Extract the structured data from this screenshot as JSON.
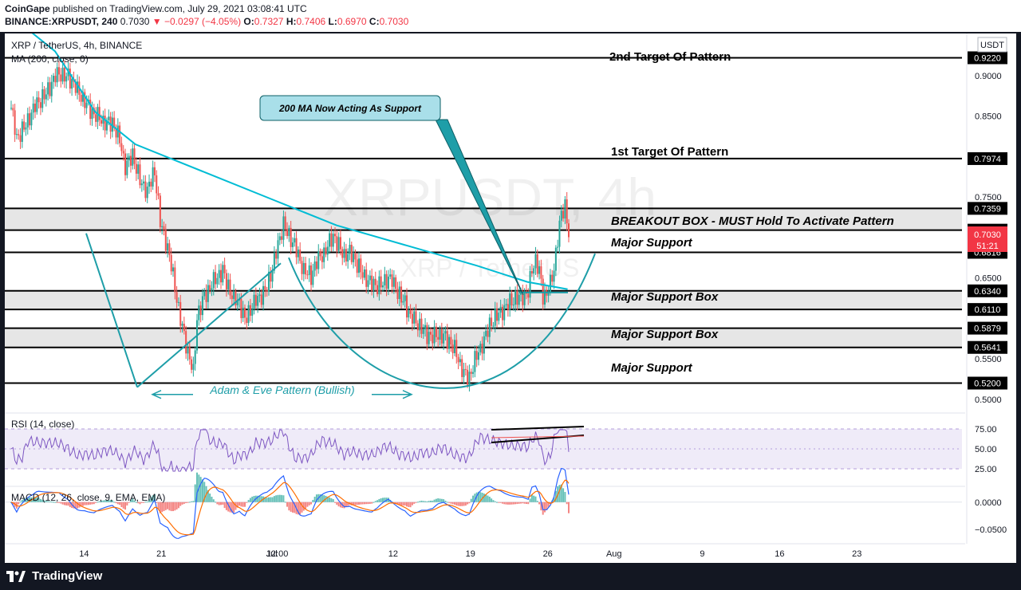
{
  "header": {
    "publisher": "CoinGape",
    "published_text": "published on TradingView.com, July 29, 2021 03:08:41 UTC",
    "symbol": "BINANCE:XRPUSDT, 240",
    "last": "0.7030",
    "change": "−0.0297 (−4.05%)",
    "ohlc": {
      "o_label": "O:",
      "o": "0.7327",
      "h_label": "H:",
      "h": "0.7406",
      "l_label": "L:",
      "l": "0.6970",
      "c_label": "C:",
      "c": "0.7030"
    }
  },
  "chart": {
    "pair_title": "XRP / TetherUS, 4h, BINANCE",
    "ma_legend": "MA (200, close, 0)",
    "currency": "USDT",
    "watermark_big": "XRPUSDT, 4h",
    "watermark_small": "XRP / TetherUS",
    "price_badge": "0.7030",
    "countdown": "51:21",
    "colors": {
      "up": "#26a69a",
      "down": "#ef5350",
      "ma": "#00bcd4",
      "annot": "#1e9ea8",
      "rsi": "#7e57c2",
      "macd": "#2962ff",
      "signal": "#ff6d00",
      "zone": "#e6e6e6"
    }
  },
  "annotations": {
    "second_target": "2nd Target Of Pattern",
    "first_target": "1st Target Of Pattern",
    "breakout_box": "BREAKOUT BOX - MUST Hold To Activate Pattern",
    "major_support_1": "Major Support",
    "major_support_box_1": "Major Support Box",
    "major_support_box_2": "Major Support Box",
    "major_support_2": "Major Support",
    "ma_callout": "200 MA Now Acting As Support",
    "pattern_label": "Adam & Eve Pattern (Bullish)"
  },
  "rsi": {
    "legend": "RSI (14, close)",
    "ticks": [
      "75.00",
      "50.00",
      "25.00"
    ]
  },
  "macd": {
    "legend": "MACD (12, 26, close, 9, EMA, EMA)",
    "ticks": [
      "0.0000",
      "−0.0500"
    ]
  },
  "footer": {
    "brand": "TradingView"
  },
  "chart_data": {
    "type": "candlestick",
    "timeframe": "4h",
    "x_ticks": [
      "14",
      "21",
      "Jul",
      "12:00",
      "12",
      "19",
      "26",
      "Aug",
      "9",
      "16",
      "23"
    ],
    "y_ticks": [
      "0.9000",
      "0.8500",
      "0.7500",
      "0.6500",
      "0.5500",
      "0.5000"
    ],
    "price_levels": [
      "0.9220",
      "0.7974",
      "0.7359",
      "0.7090",
      "0.6816",
      "0.6340",
      "0.6110",
      "0.5879",
      "0.5641",
      "0.5200"
    ],
    "horizontal_levels": [
      0.922,
      0.7974,
      0.7359,
      0.709,
      0.6816,
      0.634,
      0.611,
      0.5879,
      0.5641,
      0.52
    ],
    "zones": [
      [
        0.709,
        0.7359
      ],
      [
        0.611,
        0.634
      ],
      [
        0.5641,
        0.5879
      ]
    ],
    "ylim": [
      0.487,
      0.952
    ],
    "last_price": 0.703,
    "price_path": [
      [
        0,
        0.86
      ],
      [
        3,
        0.82
      ],
      [
        10,
        0.85
      ],
      [
        16,
        0.87
      ],
      [
        22,
        0.89
      ],
      [
        26,
        0.902
      ],
      [
        31,
        0.9
      ],
      [
        36,
        0.88
      ],
      [
        40,
        0.87
      ],
      [
        45,
        0.85
      ],
      [
        50,
        0.845
      ],
      [
        55,
        0.84
      ],
      [
        59,
        0.82
      ],
      [
        62,
        0.79
      ],
      [
        66,
        0.8
      ],
      [
        70,
        0.77
      ],
      [
        74,
        0.76
      ],
      [
        78,
        0.78
      ],
      [
        81,
        0.72
      ],
      [
        85,
        0.69
      ],
      [
        88,
        0.65
      ],
      [
        91,
        0.61
      ],
      [
        94,
        0.58
      ],
      [
        97,
        0.55
      ],
      [
        99,
        0.53
      ],
      [
        101,
        0.6
      ],
      [
        105,
        0.63
      ],
      [
        109,
        0.64
      ],
      [
        112,
        0.65
      ],
      [
        115,
        0.66
      ],
      [
        118,
        0.64
      ],
      [
        121,
        0.62
      ],
      [
        124,
        0.62
      ],
      [
        127,
        0.6
      ],
      [
        130,
        0.61
      ],
      [
        133,
        0.62
      ],
      [
        136,
        0.63
      ],
      [
        139,
        0.64
      ],
      [
        142,
        0.66
      ],
      [
        145,
        0.69
      ],
      [
        148,
        0.72
      ],
      [
        151,
        0.7
      ],
      [
        154,
        0.69
      ],
      [
        157,
        0.67
      ],
      [
        160,
        0.66
      ],
      [
        163,
        0.65
      ],
      [
        166,
        0.67
      ],
      [
        169,
        0.68
      ],
      [
        172,
        0.69
      ],
      [
        175,
        0.7
      ],
      [
        178,
        0.69
      ],
      [
        181,
        0.68
      ],
      [
        184,
        0.68
      ],
      [
        187,
        0.67
      ],
      [
        190,
        0.66
      ],
      [
        193,
        0.65
      ],
      [
        196,
        0.64
      ],
      [
        199,
        0.64
      ],
      [
        202,
        0.645
      ],
      [
        205,
        0.65
      ],
      [
        208,
        0.64
      ],
      [
        211,
        0.63
      ],
      [
        214,
        0.62
      ],
      [
        217,
        0.6
      ],
      [
        220,
        0.595
      ],
      [
        223,
        0.59
      ],
      [
        226,
        0.58
      ],
      [
        229,
        0.575
      ],
      [
        232,
        0.58
      ],
      [
        235,
        0.58
      ],
      [
        238,
        0.57
      ],
      [
        241,
        0.56
      ],
      [
        244,
        0.545
      ],
      [
        247,
        0.53
      ],
      [
        249,
        0.525
      ],
      [
        251,
        0.54
      ],
      [
        254,
        0.56
      ],
      [
        257,
        0.575
      ],
      [
        260,
        0.59
      ],
      [
        263,
        0.6
      ],
      [
        266,
        0.61
      ],
      [
        269,
        0.615
      ],
      [
        272,
        0.62
      ],
      [
        275,
        0.625
      ],
      [
        278,
        0.63
      ],
      [
        281,
        0.63
      ],
      [
        283,
        0.66
      ],
      [
        285,
        0.67
      ],
      [
        287,
        0.66
      ],
      [
        289,
        0.63
      ],
      [
        291,
        0.63
      ],
      [
        293,
        0.64
      ],
      [
        295,
        0.66
      ],
      [
        297,
        0.7
      ],
      [
        299,
        0.73
      ],
      [
        301,
        0.74
      ],
      [
        303,
        0.703
      ]
    ],
    "ma_200": [
      [
        0.0,
        0.98
      ],
      [
        0.05,
        0.93
      ],
      [
        0.09,
        0.855
      ],
      [
        0.13,
        0.815
      ],
      [
        0.2,
        0.78
      ],
      [
        0.27,
        0.745
      ],
      [
        0.33,
        0.715
      ],
      [
        0.4,
        0.69
      ],
      [
        0.47,
        0.665
      ],
      [
        0.52,
        0.645
      ],
      [
        0.56,
        0.636
      ]
    ],
    "rsi_range": [
      25,
      75
    ],
    "rsi_channel": [
      [
        0.0,
        68,
        74
      ],
      [
        1.0,
        58,
        65
      ]
    ],
    "macd_range": [
      -0.07,
      0.02
    ]
  }
}
